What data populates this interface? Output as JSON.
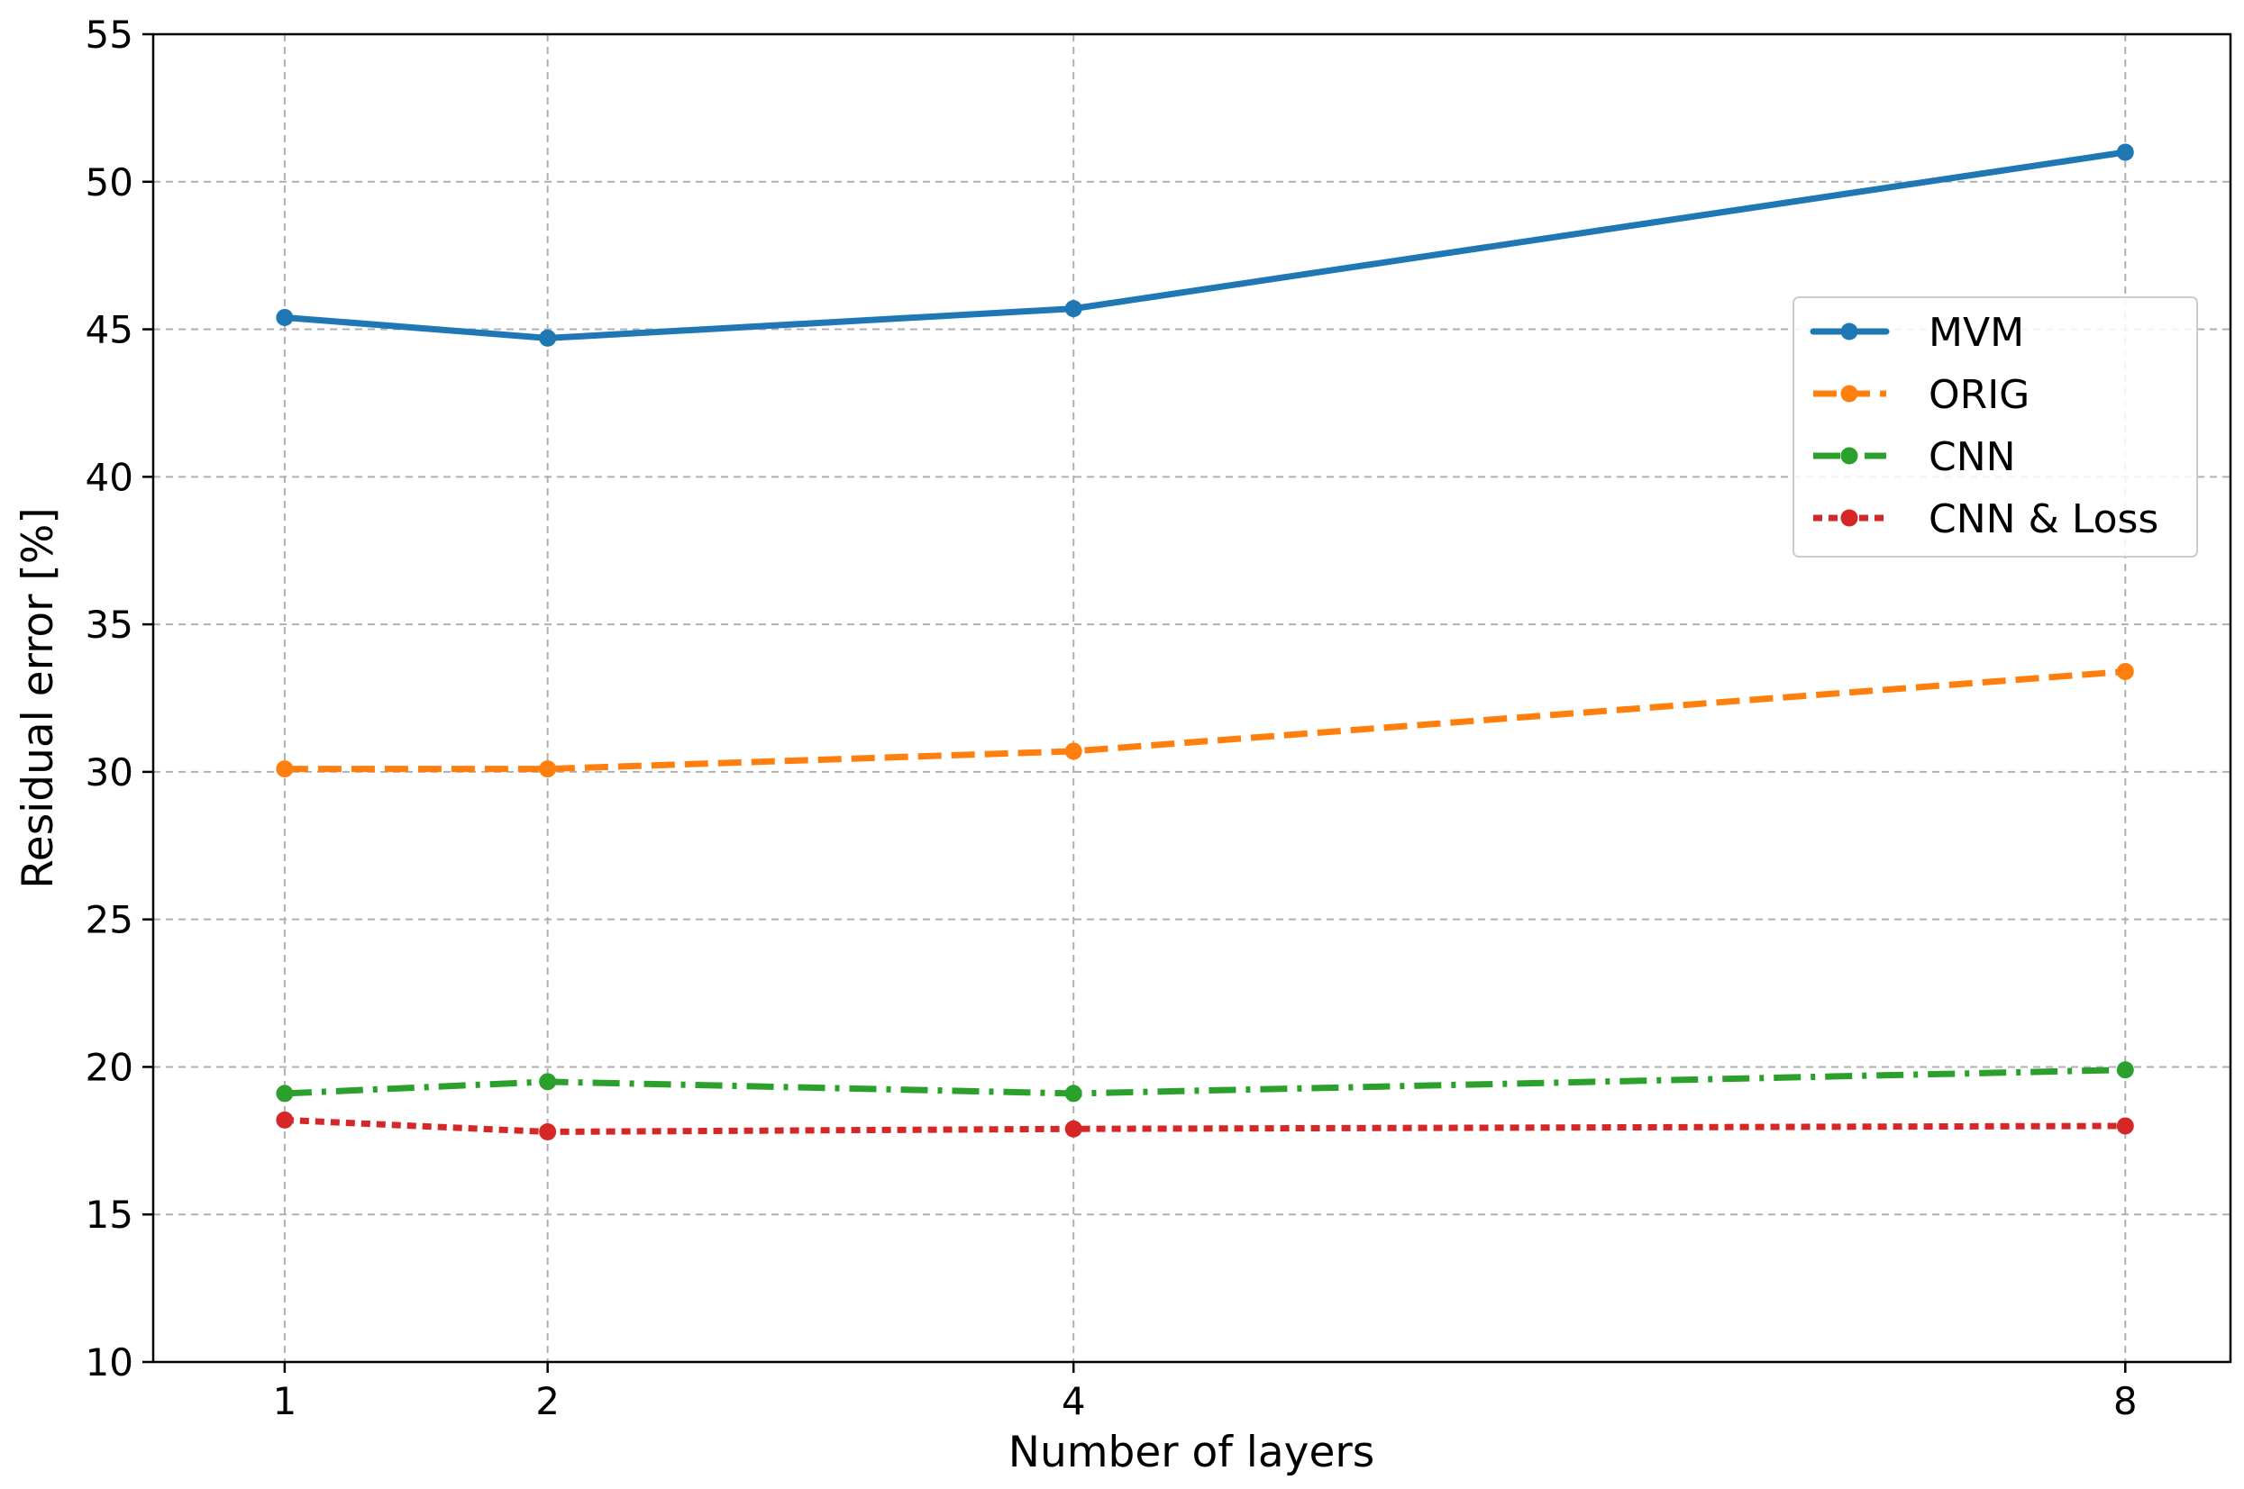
{
  "chart_data": {
    "type": "line",
    "title": "",
    "xlabel": "Number of layers",
    "ylabel": "Residual error [%]",
    "x": [
      1,
      2,
      4,
      8
    ],
    "xticks": [
      "1",
      "2",
      "4",
      "8"
    ],
    "xlim": [
      0.5,
      8.4
    ],
    "ylim": [
      10,
      55
    ],
    "yticks": [
      "10",
      "15",
      "20",
      "25",
      "30",
      "35",
      "40",
      "45",
      "50",
      "55"
    ],
    "grid": true,
    "legend_position": "center-right",
    "series": [
      {
        "name": "MVM",
        "values": [
          45.4,
          44.7,
          45.7,
          51.0
        ],
        "color": "#1f77b4",
        "style": "solid"
      },
      {
        "name": "ORIG",
        "values": [
          30.1,
          30.1,
          30.7,
          33.4
        ],
        "color": "#ff7f0e",
        "style": "dashed"
      },
      {
        "name": "CNN",
        "values": [
          19.1,
          19.5,
          19.1,
          19.9
        ],
        "color": "#2ca02c",
        "style": "dashdot"
      },
      {
        "name": "CNN & Loss",
        "values": [
          18.2,
          17.8,
          17.9,
          18.0
        ],
        "color": "#d62728",
        "style": "dotted"
      }
    ]
  }
}
